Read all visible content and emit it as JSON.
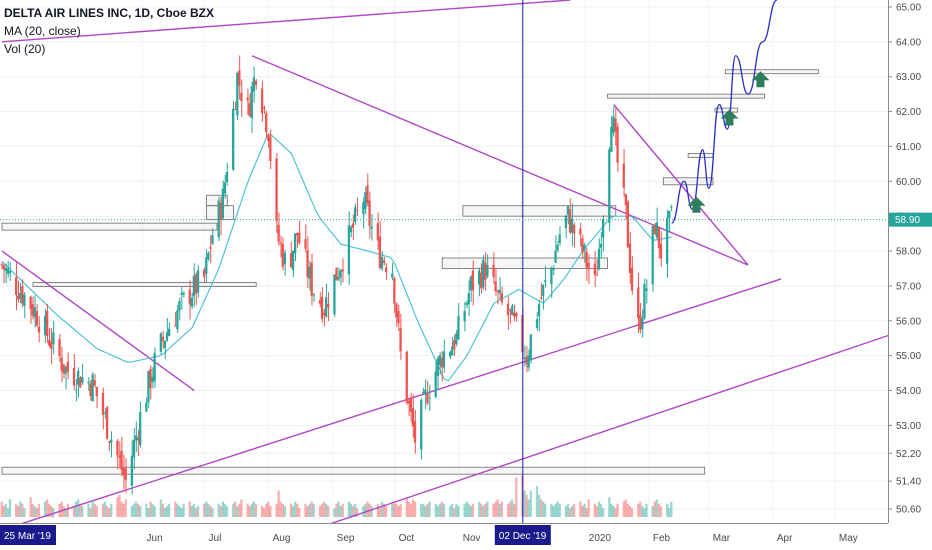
{
  "legend": {
    "title": "DELTA AIR LINES INC, 1D, Cboe BZX",
    "ma": "MA (20, close)",
    "vol": "Vol (20)"
  },
  "colors": {
    "up": "#26a69a",
    "down": "#ef5350",
    "ma": "#4fc3d5",
    "trend": "#b046c8",
    "projection": "#2b2bd0",
    "arrow": "#2e7d5b",
    "crosshair": "#1a1aaa",
    "last_price": "#26a69a"
  },
  "chart_data": {
    "type": "candlestick",
    "symbol": "DELTA AIR LINES INC",
    "interval": "1D",
    "exchange": "Cboe BZX",
    "indicators": [
      "MA (20, close)",
      "Vol (20)"
    ],
    "y_ticks": [
      "65.00",
      "64.00",
      "63.00",
      "62.00",
      "61.00",
      "60.00",
      "59.00",
      "58.00",
      "57.00",
      "56.00",
      "55.00",
      "54.00",
      "53.00",
      "52.20",
      "51.40",
      "50.60"
    ],
    "x_ticks": [
      "Jun",
      "Jul",
      "Aug",
      "Sep",
      "Oct",
      "Nov",
      "Dec",
      "2020",
      "Feb",
      "Mar",
      "Apr",
      "May"
    ],
    "crosshair_x_label": "02 Dec '19",
    "start_date_label": "25 Mar '19",
    "last_price_label": "58.90",
    "last_price": 58.9,
    "ylim": [
      50.2,
      65.2
    ],
    "close_path": [
      [
        "2019-03-25",
        57.6
      ],
      [
        "2019-04-10",
        56.3
      ],
      [
        "2019-04-25",
        54.6
      ],
      [
        "2019-05-08",
        54.2
      ],
      [
        "2019-05-15",
        53.0
      ],
      [
        "2019-05-24",
        51.4
      ],
      [
        "2019-06-01",
        53.5
      ],
      [
        "2019-06-08",
        55.0
      ],
      [
        "2019-06-15",
        56.0
      ],
      [
        "2019-06-24",
        56.8
      ],
      [
        "2019-07-01",
        57.2
      ],
      [
        "2019-07-05",
        58.5
      ],
      [
        "2019-07-10",
        59.5
      ],
      [
        "2019-07-14",
        61.5
      ],
      [
        "2019-07-17",
        63.0
      ],
      [
        "2019-07-22",
        62.0
      ],
      [
        "2019-07-26",
        63.2
      ],
      [
        "2019-08-01",
        61.5
      ],
      [
        "2019-08-05",
        58.5
      ],
      [
        "2019-08-10",
        57.5
      ],
      [
        "2019-08-15",
        58.5
      ],
      [
        "2019-08-22",
        57.0
      ],
      [
        "2019-08-28",
        56.4
      ],
      [
        "2019-09-04",
        57.5
      ],
      [
        "2019-09-10",
        58.5
      ],
      [
        "2019-09-16",
        59.5
      ],
      [
        "2019-09-23",
        58.0
      ],
      [
        "2019-09-30",
        57.5
      ],
      [
        "2019-10-04",
        55.0
      ],
      [
        "2019-10-08",
        53.5
      ],
      [
        "2019-10-11",
        52.6
      ],
      [
        "2019-10-17",
        54.0
      ],
      [
        "2019-10-24",
        55.0
      ],
      [
        "2019-10-31",
        55.5
      ],
      [
        "2019-11-07",
        57.0
      ],
      [
        "2019-11-14",
        57.5
      ],
      [
        "2019-11-21",
        56.5
      ],
      [
        "2019-11-27",
        56.0
      ],
      [
        "2019-12-04",
        55.0
      ],
      [
        "2019-12-10",
        56.5
      ],
      [
        "2019-12-16",
        57.5
      ],
      [
        "2019-12-20",
        58.5
      ],
      [
        "2019-12-24",
        59.0
      ],
      [
        "2019-12-31",
        58.0
      ],
      [
        "2020-01-06",
        57.0
      ],
      [
        "2020-01-10",
        59.2
      ],
      [
        "2020-01-14",
        62.0
      ],
      [
        "2020-01-17",
        60.5
      ],
      [
        "2020-01-21",
        59.0
      ],
      [
        "2020-01-24",
        57.0
      ],
      [
        "2020-01-27",
        55.8
      ],
      [
        "2020-01-31",
        57.0
      ],
      [
        "2020-02-04",
        58.8
      ],
      [
        "2020-02-07",
        58.0
      ],
      [
        "2020-02-12",
        58.9
      ]
    ],
    "ma20_path": [
      [
        "2019-03-25",
        57.7
      ],
      [
        "2019-04-20",
        56.2
      ],
      [
        "2019-05-10",
        55.2
      ],
      [
        "2019-05-25",
        54.8
      ],
      [
        "2019-06-10",
        55.0
      ],
      [
        "2019-06-25",
        55.8
      ],
      [
        "2019-07-08",
        57.5
      ],
      [
        "2019-07-22",
        60.0
      ],
      [
        "2019-08-01",
        61.4
      ],
      [
        "2019-08-12",
        60.8
      ],
      [
        "2019-08-25",
        59.0
      ],
      [
        "2019-09-05",
        58.2
      ],
      [
        "2019-09-18",
        58.0
      ],
      [
        "2019-09-30",
        57.8
      ],
      [
        "2019-10-12",
        56.0
      ],
      [
        "2019-10-26",
        54.2
      ],
      [
        "2019-11-05",
        55.0
      ],
      [
        "2019-11-18",
        56.5
      ],
      [
        "2019-11-30",
        56.9
      ],
      [
        "2019-12-12",
        56.5
      ],
      [
        "2019-12-22",
        57.2
      ],
      [
        "2019-12-31",
        58.0
      ],
      [
        "2020-01-14",
        59.0
      ],
      [
        "2020-01-24",
        59.0
      ],
      [
        "2020-02-03",
        58.3
      ],
      [
        "2020-02-12",
        58.4
      ]
    ],
    "projection_path": [
      [
        "2020-02-12",
        58.8
      ],
      [
        "2020-02-18",
        60.0
      ],
      [
        "2020-02-22",
        59.2
      ],
      [
        "2020-02-27",
        60.9
      ],
      [
        "2020-03-01",
        59.8
      ],
      [
        "2020-03-06",
        62.2
      ],
      [
        "2020-03-10",
        61.5
      ],
      [
        "2020-03-14",
        63.6
      ],
      [
        "2020-03-20",
        62.5
      ],
      [
        "2020-03-27",
        64.0
      ],
      [
        "2020-04-03",
        65.2
      ]
    ],
    "trendlines": [
      [
        [
          "2019-03-25",
          64.0
        ],
        [
          "2019-12-25",
          65.2
        ]
      ],
      [
        [
          "2019-07-24",
          63.6
        ],
        [
          "2020-03-20",
          57.6
        ]
      ],
      [
        [
          "2019-03-25",
          58.0
        ],
        [
          "2019-06-26",
          54.0
        ]
      ],
      [
        [
          "2020-01-15",
          62.2
        ],
        [
          "2020-03-20",
          57.6
        ]
      ],
      [
        [
          "2019-03-25",
          50.0
        ],
        [
          "2020-04-05",
          57.2
        ]
      ],
      [
        [
          "2019-07-28",
          49.5
        ],
        [
          "2020-05-28",
          55.6
        ]
      ]
    ],
    "levels": [
      {
        "from": "2019-03-25",
        "to": "2019-07-07",
        "low": 58.6,
        "high": 58.8
      },
      {
        "from": "2019-04-09",
        "to": "2019-07-26",
        "low": 57.0,
        "high": 57.1
      },
      {
        "from": "2019-07-02",
        "to": "2019-07-15",
        "low": 58.9,
        "high": 59.3
      },
      {
        "from": "2019-07-02",
        "to": "2019-07-12",
        "low": 59.3,
        "high": 59.6
      },
      {
        "from": "2019-10-24",
        "to": "2020-01-12",
        "low": 57.5,
        "high": 57.8
      },
      {
        "from": "2019-11-03",
        "to": "2020-01-16",
        "low": 59.0,
        "high": 59.3
      },
      {
        "from": "2020-01-12",
        "to": "2020-03-28",
        "low": 62.4,
        "high": 62.5
      },
      {
        "from": "2020-02-08",
        "to": "2020-03-03",
        "low": 59.9,
        "high": 60.1
      },
      {
        "from": "2020-02-20",
        "to": "2020-03-03",
        "low": 60.7,
        "high": 60.8
      },
      {
        "from": "2020-03-04",
        "to": "2020-03-15",
        "low": 62.0,
        "high": 62.1
      },
      {
        "from": "2020-03-09",
        "to": "2020-04-23",
        "low": 63.1,
        "high": 63.2
      },
      {
        "from": "2019-03-25",
        "to": "2020-02-28",
        "low": 51.6,
        "high": 51.8
      }
    ],
    "targets": [
      {
        "date": "2020-02-24",
        "price": 59.3
      },
      {
        "date": "2020-03-11",
        "price": 61.8
      },
      {
        "date": "2020-03-26",
        "price": 62.9
      }
    ],
    "volume_relative": [
      0.35,
      0.25,
      0.3,
      0.2,
      0.4,
      0.3,
      0.25,
      0.35,
      0.3,
      0.2,
      0.45,
      0.3,
      0.25,
      0.2,
      0.3,
      0.35,
      0.4,
      0.3,
      0.25,
      0.2,
      0.3,
      0.35,
      0.25,
      0.2,
      0.3,
      0.25,
      0.35,
      0.4,
      0.3,
      0.25,
      0.3,
      0.2,
      0.35,
      0.3,
      0.25,
      0.3,
      0.35,
      0.25,
      0.2,
      0.3,
      0.45,
      0.5,
      0.35,
      0.3,
      0.4,
      0.25,
      0.3,
      0.35,
      0.3,
      0.25,
      0.3,
      0.2,
      0.35,
      0.3,
      0.25,
      0.4,
      0.3,
      0.2,
      0.25,
      0.3,
      0.35,
      0.3,
      0.25,
      0.2,
      0.3,
      0.35,
      0.25,
      0.3,
      0.2,
      0.25,
      0.3,
      0.35,
      0.3,
      0.25,
      0.2,
      0.3,
      0.25,
      0.35,
      0.3,
      0.25,
      0.3,
      0.35,
      0.25,
      0.3,
      0.4,
      0.3,
      0.25,
      0.3,
      0.35,
      0.3,
      0.25,
      0.2,
      0.3,
      0.35,
      0.25,
      0.3,
      0.6,
      0.35,
      0.3,
      0.25,
      0.3,
      0.25,
      0.35,
      0.3,
      0.2,
      0.3,
      0.25,
      0.3,
      0.35,
      0.3,
      0.25,
      0.3,
      0.35,
      0.3,
      0.25,
      0.2,
      0.3,
      0.35,
      0.25,
      0.3,
      0.35,
      0.3,
      0.25,
      0.3,
      0.2,
      0.25,
      0.3,
      0.35,
      0.3,
      0.25,
      0.3,
      0.2,
      0.35,
      0.3,
      0.25,
      0.3,
      0.35,
      0.3,
      0.25,
      0.3,
      0.45,
      0.35,
      0.3,
      0.4,
      0.35,
      0.3,
      0.3,
      0.25,
      0.3,
      0.35,
      0.3,
      0.25,
      0.3,
      0.35,
      0.3,
      0.25,
      0.3,
      0.2,
      0.3,
      0.25,
      0.3,
      0.35,
      0.3,
      0.25,
      0.3,
      0.35,
      0.3,
      0.25,
      0.3,
      0.35,
      0.3,
      0.35,
      0.4,
      0.3,
      0.35,
      0.3,
      0.35,
      0.4,
      0.3,
      0.9,
      0.95,
      0.6,
      0.5,
      0.4,
      0.6,
      0.7,
      0.5,
      0.4,
      0.35,
      0.3,
      0.3,
      0.25,
      0.3,
      0.35,
      0.3,
      0.25,
      0.3,
      0.2,
      0.25,
      0.3
    ]
  }
}
